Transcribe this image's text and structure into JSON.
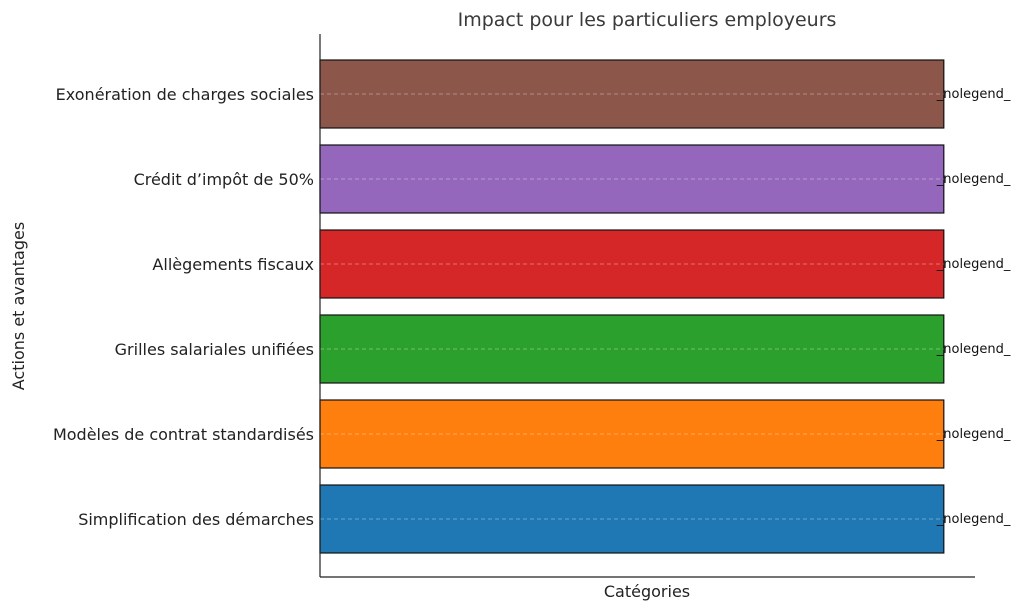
{
  "chart_data": {
    "type": "bar",
    "orientation": "horizontal",
    "title": "Impact pour les particuliers employeurs",
    "xlabel": "Catégories",
    "ylabel": "Actions et avantages",
    "categories": [
      "Simplification des démarches",
      "Modèles de contrat standardisés",
      "Grilles salariales unifiées",
      "Allègements fiscaux",
      "Crédit d’impôt de 50%",
      "Exonération de charges sociales"
    ],
    "values": [
      1,
      1,
      1,
      1,
      1,
      1
    ],
    "data_labels": [
      "_nolegend_",
      "_nolegend_",
      "_nolegend_",
      "_nolegend_",
      "_nolegend_",
      "_nolegend_"
    ],
    "colors": [
      "#1f77b4",
      "#ff7f0e",
      "#2ca02c",
      "#d62728",
      "#9467bd",
      "#8c564b"
    ],
    "xlim": [
      0,
      1.05
    ],
    "x_ticks_visible": false,
    "grid": "horizontal dashed",
    "legend": "none"
  }
}
